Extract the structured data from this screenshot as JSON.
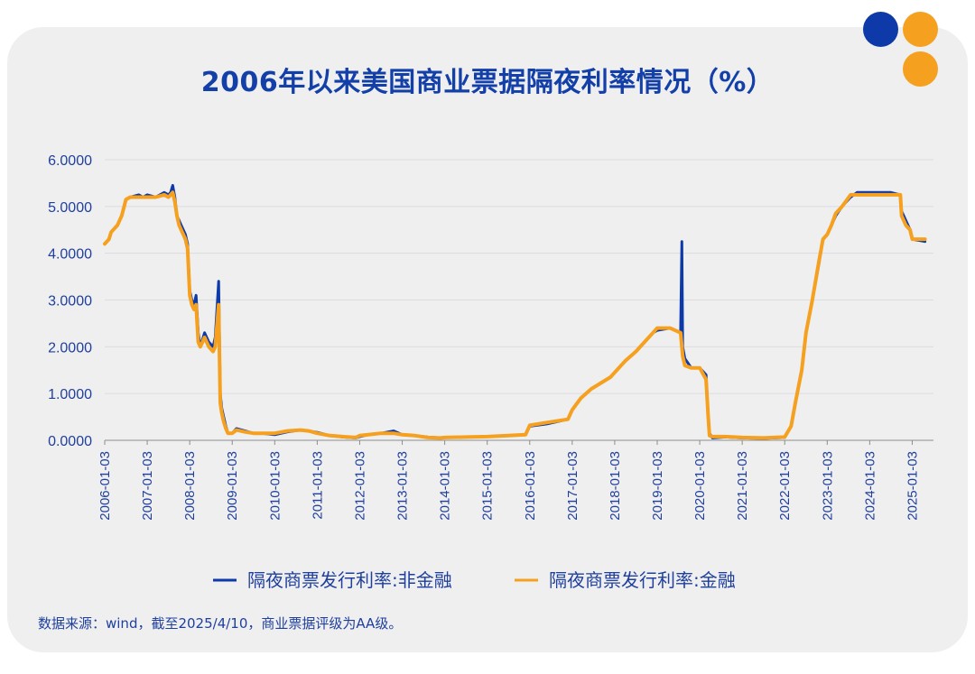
{
  "colors": {
    "background_card": "#efeff0",
    "title": "#1340a8",
    "text": "#1f3f9c",
    "series_nonfinancial": "#0d3aa8",
    "series_financial": "#f5a01e",
    "dot_blue": "#0d3aa8",
    "dot_orange": "#f5a01e",
    "grid": "#dcdcdf"
  },
  "decor": {
    "dots": [
      "blue",
      "orange",
      "orange"
    ]
  },
  "title": "2006年以来美国商业票据隔夜利率情况（%）",
  "source": "数据来源：wind，截至2025/4/10，商业票据评级为AA级。",
  "chart_data": {
    "type": "line",
    "title": "2006年以来美国商业票据隔夜利率情况（%）",
    "xlabel": "",
    "ylabel": "",
    "ylim": [
      0,
      6
    ],
    "y_ticks": [
      "6.0000",
      "5.0000",
      "4.0000",
      "3.0000",
      "2.0000",
      "1.0000",
      "0.0000"
    ],
    "x_ticks": [
      "2006-01-03",
      "2007-01-03",
      "2008-01-03",
      "2009-01-03",
      "2010-01-03",
      "2011-01-03",
      "2012-01-03",
      "2013-01-03",
      "2014-01-03",
      "2015-01-03",
      "2016-01-03",
      "2017-01-03",
      "2018-01-03",
      "2019-01-03",
      "2020-01-03",
      "2021-01-03",
      "2022-01-03",
      "2023-01-03",
      "2024-01-03",
      "2025-01-03"
    ],
    "xlim": [
      2006.0,
      2025.5
    ],
    "grid": "horizontal",
    "legend_position": "bottom",
    "series": [
      {
        "name": "隔夜商票发行利率:非金融",
        "color_key": "series_nonfinancial",
        "points": [
          [
            2006.0,
            4.2
          ],
          [
            2006.1,
            4.3
          ],
          [
            2006.15,
            4.45
          ],
          [
            2006.3,
            4.6
          ],
          [
            2006.4,
            4.8
          ],
          [
            2006.5,
            5.15
          ],
          [
            2006.6,
            5.2
          ],
          [
            2006.8,
            5.25
          ],
          [
            2006.9,
            5.2
          ],
          [
            2007.0,
            5.25
          ],
          [
            2007.2,
            5.2
          ],
          [
            2007.4,
            5.3
          ],
          [
            2007.5,
            5.25
          ],
          [
            2007.55,
            5.3
          ],
          [
            2007.6,
            5.45
          ],
          [
            2007.65,
            5.2
          ],
          [
            2007.7,
            4.8
          ],
          [
            2007.75,
            4.7
          ],
          [
            2007.8,
            4.6
          ],
          [
            2007.9,
            4.4
          ],
          [
            2007.95,
            4.2
          ],
          [
            2008.0,
            3.2
          ],
          [
            2008.05,
            3.0
          ],
          [
            2008.1,
            2.9
          ],
          [
            2008.15,
            3.1
          ],
          [
            2008.2,
            2.3
          ],
          [
            2008.25,
            2.0
          ],
          [
            2008.35,
            2.3
          ],
          [
            2008.45,
            2.1
          ],
          [
            2008.55,
            2.0
          ],
          [
            2008.6,
            2.2
          ],
          [
            2008.68,
            3.4
          ],
          [
            2008.72,
            1.0
          ],
          [
            2008.75,
            0.7
          ],
          [
            2008.8,
            0.5
          ],
          [
            2008.85,
            0.3
          ],
          [
            2008.9,
            0.15
          ],
          [
            2009.0,
            0.15
          ],
          [
            2009.1,
            0.25
          ],
          [
            2009.3,
            0.2
          ],
          [
            2009.5,
            0.15
          ],
          [
            2009.7,
            0.15
          ],
          [
            2010.0,
            0.12
          ],
          [
            2010.3,
            0.18
          ],
          [
            2010.6,
            0.22
          ],
          [
            2010.8,
            0.2
          ],
          [
            2011.0,
            0.17
          ],
          [
            2011.3,
            0.1
          ],
          [
            2011.6,
            0.07
          ],
          [
            2011.9,
            0.05
          ],
          [
            2012.0,
            0.08
          ],
          [
            2012.2,
            0.12
          ],
          [
            2012.5,
            0.15
          ],
          [
            2012.8,
            0.2
          ],
          [
            2013.0,
            0.12
          ],
          [
            2013.3,
            0.1
          ],
          [
            2013.6,
            0.07
          ],
          [
            2013.9,
            0.05
          ],
          [
            2014.0,
            0.06
          ],
          [
            2014.5,
            0.07
          ],
          [
            2015.0,
            0.08
          ],
          [
            2015.5,
            0.1
          ],
          [
            2015.9,
            0.12
          ],
          [
            2016.0,
            0.3
          ],
          [
            2016.4,
            0.35
          ],
          [
            2016.9,
            0.45
          ],
          [
            2017.0,
            0.65
          ],
          [
            2017.2,
            0.9
          ],
          [
            2017.45,
            1.1
          ],
          [
            2017.9,
            1.35
          ],
          [
            2018.0,
            1.45
          ],
          [
            2018.25,
            1.7
          ],
          [
            2018.5,
            1.9
          ],
          [
            2018.7,
            2.1
          ],
          [
            2018.9,
            2.3
          ],
          [
            2019.0,
            2.35
          ],
          [
            2019.3,
            2.4
          ],
          [
            2019.55,
            2.3
          ],
          [
            2019.58,
            4.25
          ],
          [
            2019.6,
            2.0
          ],
          [
            2019.65,
            1.75
          ],
          [
            2019.8,
            1.55
          ],
          [
            2020.0,
            1.55
          ],
          [
            2020.15,
            1.4
          ],
          [
            2020.2,
            0.5
          ],
          [
            2020.23,
            0.15
          ],
          [
            2020.3,
            0.05
          ],
          [
            2020.6,
            0.07
          ],
          [
            2021.0,
            0.05
          ],
          [
            2021.5,
            0.04
          ],
          [
            2022.0,
            0.06
          ],
          [
            2022.15,
            0.3
          ],
          [
            2022.25,
            0.8
          ],
          [
            2022.4,
            1.5
          ],
          [
            2022.5,
            2.3
          ],
          [
            2022.65,
            3.0
          ],
          [
            2022.8,
            3.75
          ],
          [
            2022.9,
            4.3
          ],
          [
            2023.0,
            4.4
          ],
          [
            2023.1,
            4.6
          ],
          [
            2023.2,
            4.8
          ],
          [
            2023.35,
            5.0
          ],
          [
            2023.55,
            5.2
          ],
          [
            2023.7,
            5.3
          ],
          [
            2024.0,
            5.3
          ],
          [
            2024.5,
            5.3
          ],
          [
            2024.72,
            5.25
          ],
          [
            2024.75,
            4.9
          ],
          [
            2024.85,
            4.7
          ],
          [
            2024.95,
            4.5
          ],
          [
            2025.0,
            4.3
          ],
          [
            2025.3,
            4.25
          ]
        ]
      },
      {
        "name": "隔夜商票发行利率:金融",
        "color_key": "series_financial",
        "points": [
          [
            2006.0,
            4.2
          ],
          [
            2006.1,
            4.3
          ],
          [
            2006.15,
            4.45
          ],
          [
            2006.3,
            4.6
          ],
          [
            2006.4,
            4.8
          ],
          [
            2006.5,
            5.15
          ],
          [
            2006.6,
            5.2
          ],
          [
            2006.8,
            5.2
          ],
          [
            2006.9,
            5.2
          ],
          [
            2007.0,
            5.2
          ],
          [
            2007.2,
            5.2
          ],
          [
            2007.4,
            5.25
          ],
          [
            2007.5,
            5.2
          ],
          [
            2007.55,
            5.25
          ],
          [
            2007.6,
            5.3
          ],
          [
            2007.65,
            5.1
          ],
          [
            2007.7,
            4.8
          ],
          [
            2007.75,
            4.6
          ],
          [
            2007.8,
            4.5
          ],
          [
            2007.9,
            4.3
          ],
          [
            2007.95,
            4.1
          ],
          [
            2008.0,
            3.1
          ],
          [
            2008.05,
            2.9
          ],
          [
            2008.1,
            2.8
          ],
          [
            2008.15,
            2.9
          ],
          [
            2008.2,
            2.1
          ],
          [
            2008.25,
            2.0
          ],
          [
            2008.35,
            2.2
          ],
          [
            2008.45,
            2.0
          ],
          [
            2008.55,
            1.9
          ],
          [
            2008.6,
            2.0
          ],
          [
            2008.68,
            2.9
          ],
          [
            2008.72,
            0.8
          ],
          [
            2008.75,
            0.6
          ],
          [
            2008.8,
            0.4
          ],
          [
            2008.85,
            0.25
          ],
          [
            2008.9,
            0.15
          ],
          [
            2009.0,
            0.15
          ],
          [
            2009.1,
            0.22
          ],
          [
            2009.3,
            0.18
          ],
          [
            2009.5,
            0.15
          ],
          [
            2009.7,
            0.15
          ],
          [
            2010.0,
            0.15
          ],
          [
            2010.3,
            0.2
          ],
          [
            2010.6,
            0.22
          ],
          [
            2010.8,
            0.2
          ],
          [
            2011.0,
            0.15
          ],
          [
            2011.3,
            0.1
          ],
          [
            2011.6,
            0.08
          ],
          [
            2011.9,
            0.06
          ],
          [
            2012.0,
            0.1
          ],
          [
            2012.2,
            0.12
          ],
          [
            2012.5,
            0.15
          ],
          [
            2012.8,
            0.15
          ],
          [
            2013.0,
            0.12
          ],
          [
            2013.3,
            0.1
          ],
          [
            2013.6,
            0.06
          ],
          [
            2013.9,
            0.05
          ],
          [
            2014.0,
            0.06
          ],
          [
            2014.5,
            0.07
          ],
          [
            2015.0,
            0.08
          ],
          [
            2015.5,
            0.1
          ],
          [
            2015.9,
            0.12
          ],
          [
            2016.0,
            0.32
          ],
          [
            2016.4,
            0.38
          ],
          [
            2016.9,
            0.45
          ],
          [
            2017.0,
            0.65
          ],
          [
            2017.2,
            0.9
          ],
          [
            2017.45,
            1.1
          ],
          [
            2017.9,
            1.35
          ],
          [
            2018.0,
            1.45
          ],
          [
            2018.25,
            1.7
          ],
          [
            2018.5,
            1.9
          ],
          [
            2018.7,
            2.1
          ],
          [
            2018.9,
            2.3
          ],
          [
            2019.0,
            2.4
          ],
          [
            2019.3,
            2.4
          ],
          [
            2019.55,
            2.3
          ],
          [
            2019.58,
            2.0
          ],
          [
            2019.6,
            1.8
          ],
          [
            2019.65,
            1.6
          ],
          [
            2019.8,
            1.55
          ],
          [
            2020.0,
            1.55
          ],
          [
            2020.15,
            1.3
          ],
          [
            2020.2,
            0.5
          ],
          [
            2020.23,
            0.1
          ],
          [
            2020.3,
            0.08
          ],
          [
            2020.6,
            0.08
          ],
          [
            2021.0,
            0.06
          ],
          [
            2021.5,
            0.05
          ],
          [
            2022.0,
            0.07
          ],
          [
            2022.15,
            0.3
          ],
          [
            2022.25,
            0.8
          ],
          [
            2022.4,
            1.5
          ],
          [
            2022.5,
            2.3
          ],
          [
            2022.65,
            3.0
          ],
          [
            2022.8,
            3.8
          ],
          [
            2022.9,
            4.3
          ],
          [
            2023.0,
            4.4
          ],
          [
            2023.1,
            4.6
          ],
          [
            2023.2,
            4.85
          ],
          [
            2023.35,
            5.0
          ],
          [
            2023.55,
            5.25
          ],
          [
            2023.7,
            5.25
          ],
          [
            2024.0,
            5.25
          ],
          [
            2024.5,
            5.25
          ],
          [
            2024.72,
            5.25
          ],
          [
            2024.75,
            4.8
          ],
          [
            2024.85,
            4.6
          ],
          [
            2024.95,
            4.5
          ],
          [
            2025.0,
            4.3
          ],
          [
            2025.3,
            4.3
          ]
        ]
      }
    ]
  }
}
